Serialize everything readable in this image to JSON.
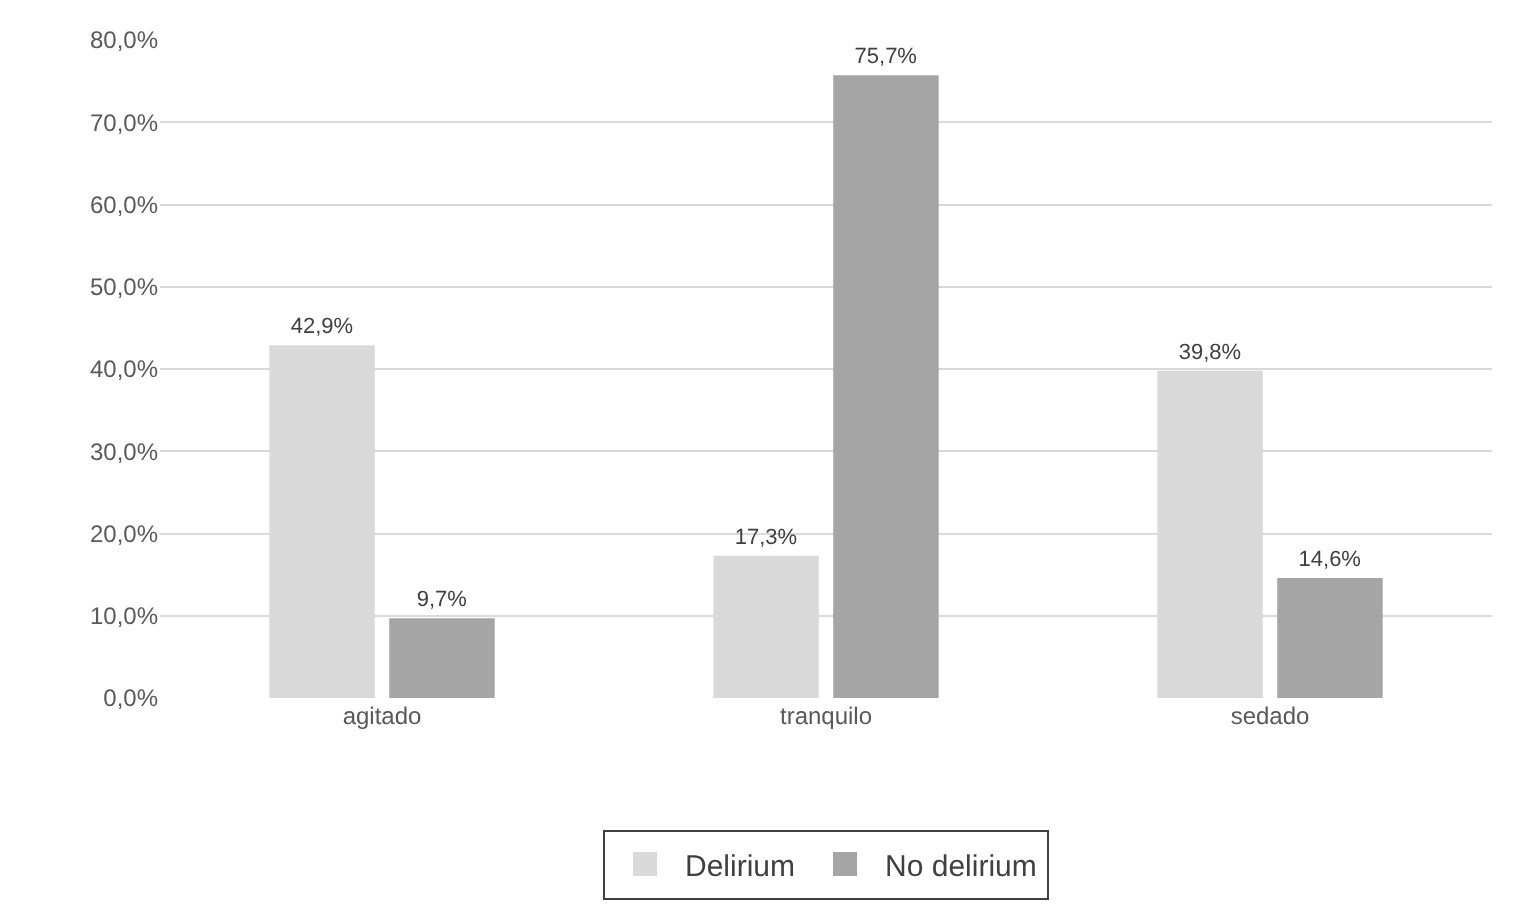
{
  "chart_data": {
    "type": "bar",
    "categories": [
      "agitado",
      "tranquilo",
      "sedado"
    ],
    "series": [
      {
        "name": "Delirium",
        "color": "#d9d9d9",
        "values": [
          42.9,
          17.3,
          39.8
        ],
        "value_labels": [
          "42,9%",
          "17,3%",
          "39,8%"
        ]
      },
      {
        "name": "No delirium",
        "color": "#a5a5a5",
        "values": [
          9.7,
          75.7,
          14.6
        ],
        "value_labels": [
          "9,7%",
          "75,7%",
          "14,6%"
        ]
      }
    ],
    "ylim": [
      0,
      80
    ],
    "yticks": [
      {
        "value": 0,
        "label": "0,0%"
      },
      {
        "value": 10,
        "label": "10,0%"
      },
      {
        "value": 20,
        "label": "20,0%"
      },
      {
        "value": 30,
        "label": "30,0%"
      },
      {
        "value": 40,
        "label": "40,0%"
      },
      {
        "value": 50,
        "label": "50,0%"
      },
      {
        "value": 60,
        "label": "60,0%"
      },
      {
        "value": 70,
        "label": "70,0%"
      },
      {
        "value": 80,
        "label": "80,0%"
      }
    ],
    "grid": "y",
    "legend": "bottom"
  }
}
